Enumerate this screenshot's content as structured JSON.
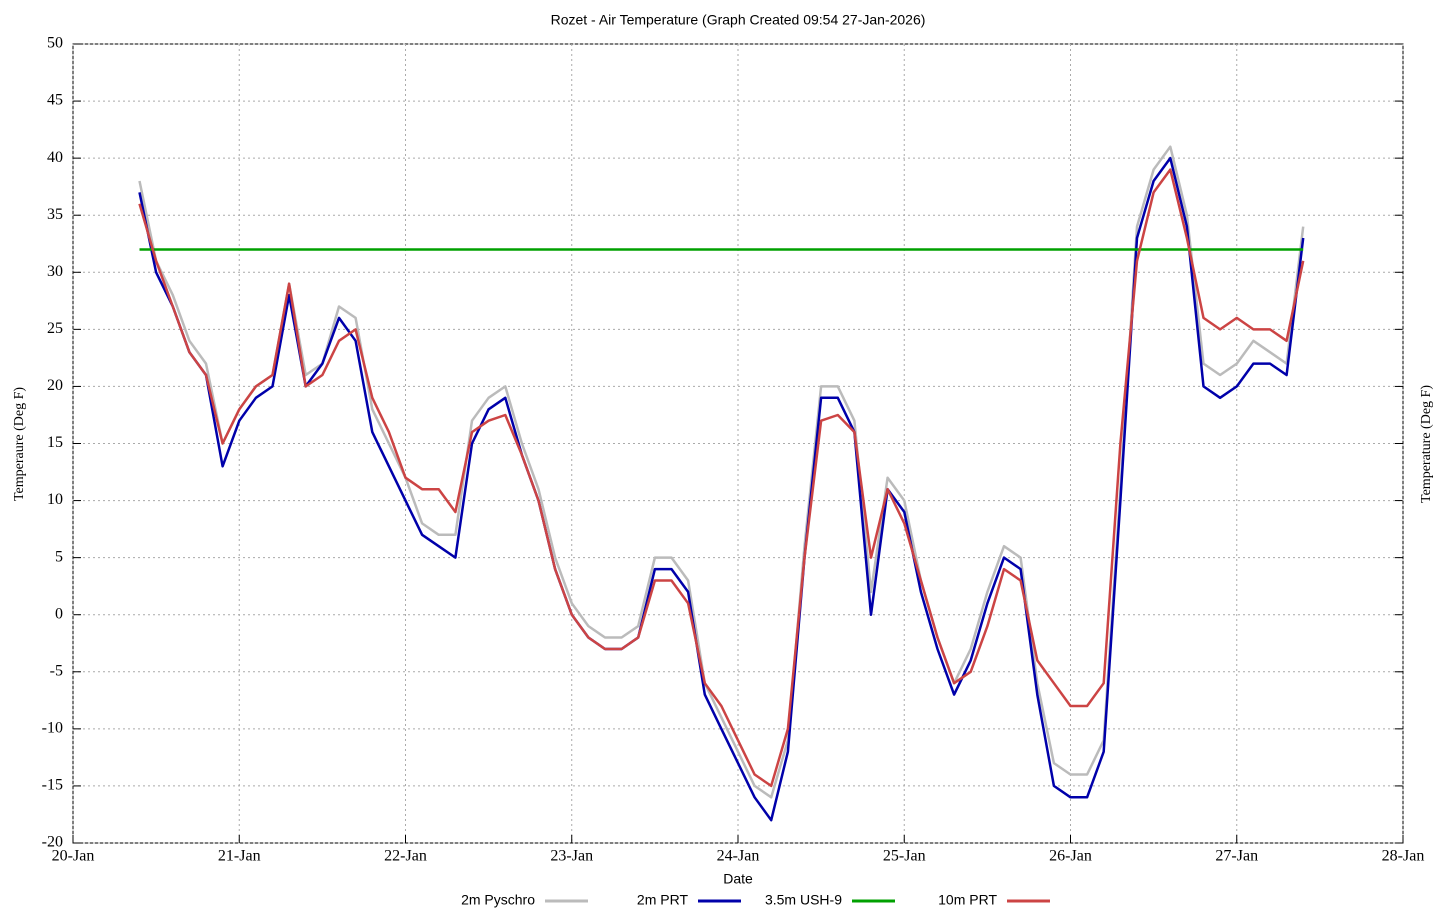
{
  "chart_data": {
    "type": "line",
    "title": "Rozet - Air Temperature (Graph Created 09:54 27-Jan-2026)",
    "x_label": "Date",
    "y_label": "Temperaure (Deg F)",
    "y2_label": "Temperature (Deg F)",
    "x": [
      20.4,
      20.5,
      20.6,
      20.7,
      20.8,
      20.9,
      21.0,
      21.1,
      21.2,
      21.3,
      21.4,
      21.5,
      21.6,
      21.7,
      21.8,
      21.9,
      22.0,
      22.1,
      22.2,
      22.3,
      22.4,
      22.5,
      22.6,
      22.7,
      22.8,
      22.9,
      23.0,
      23.1,
      23.2,
      23.3,
      23.4,
      23.5,
      23.6,
      23.7,
      23.8,
      23.9,
      24.0,
      24.1,
      24.2,
      24.3,
      24.4,
      24.5,
      24.6,
      24.7,
      24.8,
      24.9,
      25.0,
      25.1,
      25.2,
      25.3,
      25.4,
      25.5,
      25.6,
      25.7,
      25.8,
      25.9,
      26.0,
      26.1,
      26.2,
      26.3,
      26.4,
      26.5,
      26.6,
      26.7,
      26.8,
      26.9,
      27.0,
      27.1,
      27.2,
      27.3,
      27.4
    ],
    "xlim": [
      20,
      28
    ],
    "xticks": [
      {
        "value": 20,
        "label": "20-Jan"
      },
      {
        "value": 21,
        "label": "21-Jan"
      },
      {
        "value": 22,
        "label": "22-Jan"
      },
      {
        "value": 23,
        "label": "23-Jan"
      },
      {
        "value": 24,
        "label": "24-Jan"
      },
      {
        "value": 25,
        "label": "25-Jan"
      },
      {
        "value": 26,
        "label": "26-Jan"
      },
      {
        "value": 27,
        "label": "27-Jan"
      },
      {
        "value": 28,
        "label": "28-Jan"
      }
    ],
    "ylim": [
      -20,
      50
    ],
    "yticks": [
      -20,
      -15,
      -10,
      -5,
      0,
      5,
      10,
      15,
      20,
      25,
      30,
      35,
      40,
      45,
      50
    ],
    "grid": true,
    "legend": "bottom",
    "series": [
      {
        "name": "2m Pyschro",
        "color": "#bbbbbb",
        "values": [
          38,
          31,
          28,
          24,
          22,
          15,
          18,
          20,
          21,
          29,
          21,
          22,
          27,
          26,
          18,
          15,
          12,
          8,
          7,
          7,
          17,
          19,
          20,
          15,
          11,
          5,
          1,
          -1,
          -2,
          -2,
          -1,
          5,
          5,
          3,
          -6,
          -9,
          -12,
          -15,
          -16,
          -11,
          6,
          20,
          20,
          17,
          2,
          12,
          10,
          3,
          -2,
          -6,
          -3,
          2,
          6,
          5,
          -6,
          -13,
          -14,
          -14,
          -11,
          11,
          34,
          39,
          41,
          35,
          22,
          21,
          22,
          24,
          23,
          22,
          34
        ]
      },
      {
        "name": "2m PRT",
        "color": "#0000aa",
        "values": [
          37,
          30,
          27,
          23,
          21,
          13,
          17,
          19,
          20,
          28,
          20,
          22,
          26,
          24,
          16,
          13,
          10,
          7,
          6,
          5,
          15,
          18,
          19,
          14,
          10,
          4,
          0,
          -2,
          -3,
          -3,
          -2,
          4,
          4,
          2,
          -7,
          -10,
          -13,
          -16,
          -18,
          -12,
          5,
          19,
          19,
          16,
          0,
          11,
          9,
          2,
          -3,
          -7,
          -4,
          1,
          5,
          4,
          -7,
          -15,
          -16,
          -16,
          -12,
          10,
          33,
          38,
          40,
          34,
          20,
          19,
          20,
          22,
          22,
          21,
          33
        ]
      },
      {
        "name": "3.5m USH-9",
        "color": "#00a000",
        "x": [
          20.4,
          27.4
        ],
        "values": [
          32,
          32
        ]
      },
      {
        "name": "10m PRT",
        "color": "#cc4444",
        "values": [
          36,
          31,
          27,
          23,
          21,
          15,
          18,
          20,
          21,
          29,
          20,
          21,
          24,
          25,
          19,
          16,
          12,
          11,
          11,
          9,
          16,
          17,
          17.5,
          14,
          10,
          4,
          0,
          -2,
          -3,
          -3,
          -2,
          3,
          3,
          1,
          -6,
          -8,
          -11,
          -14,
          -15,
          -10,
          5,
          17,
          17.5,
          16,
          5,
          11,
          8,
          3,
          -2,
          -6,
          -5,
          -1,
          4,
          3,
          -4,
          -6,
          -8,
          -8,
          -6,
          15,
          31,
          37,
          39,
          33,
          26,
          25,
          26,
          25,
          25,
          24,
          31
        ]
      }
    ]
  }
}
